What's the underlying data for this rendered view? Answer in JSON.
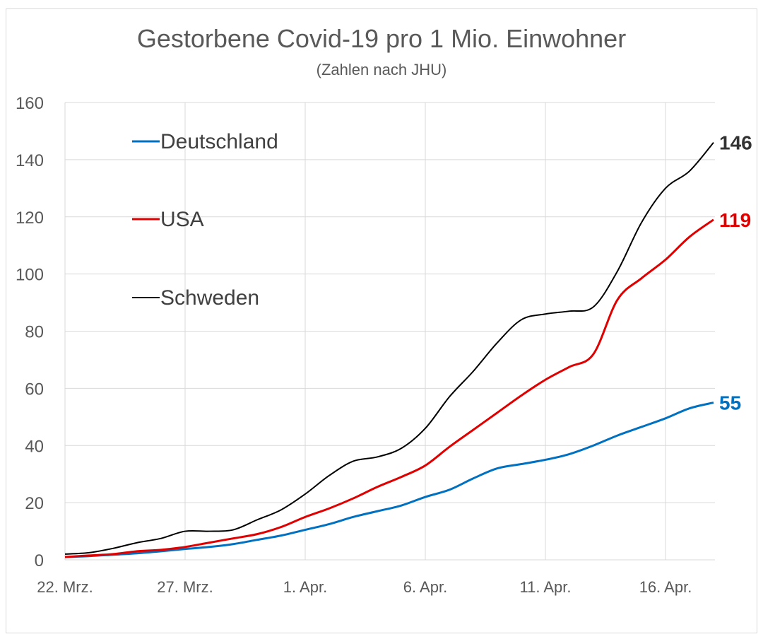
{
  "chart_data": {
    "type": "line",
    "title": "Gestorbene Covid-19 pro  1 Mio. Einwohner",
    "subtitle": "(Zahlen nach JHU)",
    "xlabel": "",
    "ylabel": "",
    "ylim": [
      0,
      160
    ],
    "yticks": [
      "0",
      "20",
      "40",
      "60",
      "80",
      "100",
      "120",
      "140",
      "160"
    ],
    "xtick_labels": [
      "22. Mrz.",
      "27. Mrz.",
      "1. Apr.",
      "6. Apr.",
      "11. Apr.",
      "16. Apr."
    ],
    "xtick_indices": [
      0,
      5,
      10,
      15,
      20,
      25
    ],
    "x_count": 28,
    "grid": true,
    "legend_placement": "top-left",
    "series": [
      {
        "name": "Deutschland",
        "color": "#0070c0",
        "end_label": "55",
        "values": [
          1,
          1.3,
          1.8,
          2.3,
          3,
          3.8,
          4.5,
          5.5,
          7,
          8.5,
          10.5,
          12.5,
          15,
          17,
          19,
          22,
          24.5,
          28.5,
          32,
          33.5,
          35,
          37,
          40,
          43.5,
          46.5,
          49.5,
          53,
          55
        ]
      },
      {
        "name": "USA",
        "color": "#e00000",
        "end_label": "119",
        "values": [
          1,
          1.5,
          2,
          3,
          3.5,
          4.5,
          6,
          7.5,
          9,
          11.5,
          15,
          18,
          21.5,
          25.5,
          29,
          33,
          39.5,
          45.5,
          51.5,
          57.5,
          63,
          67.5,
          72,
          91,
          98.5,
          105,
          113,
          119
        ]
      },
      {
        "name": "Schweden",
        "color": "#000000",
        "end_label": "146",
        "values": [
          2,
          2.5,
          4,
          6,
          7.5,
          10,
          10,
          10.5,
          14,
          17.5,
          23,
          29.5,
          34.5,
          36,
          39,
          46,
          57,
          66,
          76,
          84,
          86,
          87,
          88.5,
          101,
          118,
          130,
          136,
          146
        ]
      }
    ]
  }
}
